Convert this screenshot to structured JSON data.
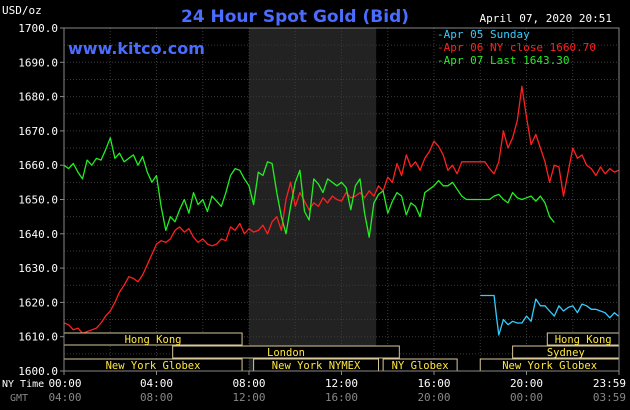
{
  "chart_data": {
    "type": "line",
    "title": "24 Hour Spot Gold (Bid)",
    "watermark": "www.kitco.com",
    "unit_label": "USD/oz",
    "timestamp": "April 07, 2020 20:51",
    "ylim": [
      1600.0,
      1700.0
    ],
    "y_ticks": [
      "1600.0",
      "1610.0",
      "1620.0",
      "1630.0",
      "1640.0",
      "1650.0",
      "1660.0",
      "1670.0",
      "1680.0",
      "1690.0",
      "1700.0"
    ],
    "x_ticks_ny": [
      "00:00",
      "04:00",
      "08:00",
      "12:00",
      "16:00",
      "20:00",
      "23:59"
    ],
    "x_ticks_gmt": [
      "04:00",
      "08:00",
      "12:00",
      "16:00",
      "20:00",
      "00:00",
      "03:59"
    ],
    "x_axis_label_ny": "NY Time",
    "x_axis_label_gmt": "GMT",
    "shaded_range": [
      8.0,
      13.5
    ],
    "legend": [
      {
        "label": "Apr 05 Sunday",
        "color": "#33ccff"
      },
      {
        "label": "Apr 06 NY close 1660.70",
        "color": "#ff2020"
      },
      {
        "label": "Apr 07 Last 1643.30",
        "color": "#22ee22"
      }
    ],
    "series": [
      {
        "color": "#33ccff",
        "x": [
          18.0,
          18.6,
          18.7,
          18.8,
          19.0,
          19.2,
          19.4,
          19.6,
          19.8,
          20.0,
          20.2,
          20.4,
          20.6,
          20.8,
          21.0,
          21.2,
          21.4,
          21.6,
          21.8,
          22.0,
          22.2,
          22.4,
          22.6,
          22.8,
          23.0,
          23.2,
          23.4,
          23.6,
          23.8,
          23.98
        ],
        "y": [
          1622.0,
          1622.0,
          1616.0,
          1610.5,
          1615.0,
          1613.5,
          1614.5,
          1614.0,
          1614.0,
          1616.0,
          1614.5,
          1621.0,
          1619.0,
          1619.0,
          1617.5,
          1616.0,
          1619.0,
          1617.5,
          1618.5,
          1619.0,
          1617.0,
          1619.5,
          1619.0,
          1618.0,
          1618.0,
          1617.5,
          1617.0,
          1615.5,
          1617.0,
          1616.0
        ]
      },
      {
        "color": "#ff2020",
        "x": [
          0.0,
          0.2,
          0.4,
          0.6,
          0.8,
          1.0,
          1.2,
          1.4,
          1.6,
          1.8,
          2.0,
          2.2,
          2.4,
          2.6,
          2.8,
          3.0,
          3.2,
          3.4,
          3.6,
          3.8,
          4.0,
          4.2,
          4.4,
          4.6,
          4.8,
          5.0,
          5.2,
          5.4,
          5.6,
          5.8,
          6.0,
          6.2,
          6.4,
          6.6,
          6.8,
          7.0,
          7.2,
          7.4,
          7.6,
          7.8,
          8.0,
          8.2,
          8.4,
          8.6,
          8.8,
          9.0,
          9.2,
          9.4,
          9.6,
          9.8,
          10.0,
          10.2,
          10.4,
          10.6,
          10.8,
          11.0,
          11.2,
          11.4,
          11.6,
          11.8,
          12.0,
          12.2,
          12.4,
          12.6,
          12.8,
          13.0,
          13.2,
          13.4,
          13.6,
          13.8,
          14.0,
          14.2,
          14.4,
          14.6,
          14.8,
          15.0,
          15.2,
          15.4,
          15.6,
          15.8,
          16.0,
          16.2,
          16.4,
          16.6,
          16.8,
          17.0,
          17.2,
          17.4,
          17.6,
          17.8,
          18.0,
          18.2,
          18.4,
          18.6,
          18.8,
          19.0,
          19.2,
          19.4,
          19.6,
          19.8,
          20.0,
          20.2,
          20.4,
          20.6,
          20.8,
          21.0,
          21.2,
          21.4,
          21.6,
          21.8,
          22.0,
          22.2,
          22.4,
          22.6,
          22.8,
          23.0,
          23.2,
          23.4,
          23.6,
          23.8,
          23.98
        ],
        "y": [
          1614.0,
          1613.5,
          1612.0,
          1612.5,
          1611.0,
          1611.5,
          1612.0,
          1612.5,
          1614.0,
          1616.0,
          1617.5,
          1620.0,
          1623.0,
          1625.0,
          1627.5,
          1627.0,
          1626.0,
          1628.0,
          1631.0,
          1634.0,
          1637.0,
          1638.0,
          1637.5,
          1638.5,
          1641.0,
          1642.0,
          1640.5,
          1641.5,
          1639.0,
          1637.5,
          1638.5,
          1637.0,
          1636.5,
          1637.0,
          1638.5,
          1638.0,
          1642.0,
          1641.0,
          1643.0,
          1640.0,
          1641.5,
          1640.5,
          1641.0,
          1642.5,
          1640.0,
          1643.5,
          1645.0,
          1641.0,
          1650.0,
          1655.0,
          1648.0,
          1652.0,
          1649.5,
          1647.0,
          1649.0,
          1648.0,
          1650.5,
          1649.0,
          1651.0,
          1650.0,
          1649.5,
          1652.0,
          1650.5,
          1651.0,
          1652.0,
          1650.5,
          1652.5,
          1651.0,
          1654.0,
          1652.5,
          1656.5,
          1655.0,
          1660.5,
          1657.0,
          1663.0,
          1659.5,
          1661.0,
          1658.5,
          1662.0,
          1664.0,
          1667.0,
          1665.5,
          1663.0,
          1658.5,
          1660.0,
          1657.5,
          1661.0,
          1661.0,
          1661.0,
          1661.0,
          1661.0,
          1661.0,
          1659.0,
          1657.5,
          1661.0,
          1670.0,
          1665.0,
          1668.0,
          1673.0,
          1683.0,
          1674.0,
          1666.0,
          1669.0,
          1665.0,
          1661.0,
          1655.0,
          1660.0,
          1659.5,
          1651.0,
          1658.0,
          1665.0,
          1662.0,
          1663.0,
          1660.0,
          1659.0,
          1657.0,
          1659.5,
          1657.5,
          1659.0,
          1658.0,
          1658.5
        ]
      },
      {
        "color": "#22ee22",
        "x": [
          0.0,
          0.2,
          0.4,
          0.6,
          0.8,
          1.0,
          1.2,
          1.4,
          1.6,
          1.8,
          2.0,
          2.2,
          2.4,
          2.6,
          2.8,
          3.0,
          3.2,
          3.4,
          3.6,
          3.8,
          4.0,
          4.2,
          4.4,
          4.6,
          4.8,
          5.0,
          5.2,
          5.4,
          5.6,
          5.8,
          6.0,
          6.2,
          6.4,
          6.6,
          6.8,
          7.0,
          7.2,
          7.4,
          7.6,
          7.8,
          8.0,
          8.2,
          8.4,
          8.6,
          8.8,
          9.0,
          9.2,
          9.4,
          9.6,
          9.8,
          10.0,
          10.2,
          10.4,
          10.6,
          10.8,
          11.0,
          11.2,
          11.4,
          11.6,
          11.8,
          12.0,
          12.2,
          12.4,
          12.6,
          12.8,
          13.0,
          13.2,
          13.4,
          13.6,
          13.8,
          14.0,
          14.2,
          14.4,
          14.6,
          14.8,
          15.0,
          15.2,
          15.4,
          15.6,
          15.8,
          16.0,
          16.2,
          16.4,
          16.6,
          16.8,
          17.0,
          17.2,
          17.4,
          17.6,
          17.8,
          18.0,
          18.2,
          18.4,
          18.6,
          18.8,
          19.0,
          19.2,
          19.4,
          19.6,
          19.8,
          20.0,
          20.2,
          20.4,
          20.6,
          20.8,
          21.0,
          21.2
        ],
        "y": [
          1660.0,
          1659.0,
          1660.5,
          1658.0,
          1656.0,
          1661.5,
          1660.0,
          1662.0,
          1661.5,
          1664.5,
          1668.0,
          1662.0,
          1663.5,
          1661.0,
          1662.0,
          1663.0,
          1660.0,
          1662.5,
          1658.0,
          1655.0,
          1657.0,
          1648.0,
          1641.0,
          1645.0,
          1643.5,
          1647.0,
          1650.0,
          1646.0,
          1652.0,
          1648.5,
          1650.0,
          1646.5,
          1651.0,
          1649.5,
          1648.0,
          1652.0,
          1657.0,
          1659.0,
          1658.5,
          1656.0,
          1654.0,
          1648.5,
          1658.0,
          1657.0,
          1661.0,
          1660.5,
          1652.0,
          1645.0,
          1640.0,
          1648.0,
          1655.0,
          1658.5,
          1646.5,
          1644.0,
          1656.0,
          1654.5,
          1652.0,
          1656.0,
          1655.0,
          1654.0,
          1655.0,
          1653.5,
          1647.0,
          1654.0,
          1656.0,
          1646.0,
          1639.0,
          1649.0,
          1651.5,
          1652.5,
          1646.0,
          1649.5,
          1652.0,
          1651.0,
          1645.5,
          1649.0,
          1648.0,
          1645.0,
          1652.0,
          1653.0,
          1654.0,
          1655.5,
          1654.0,
          1654.0,
          1655.0,
          1653.0,
          1651.0,
          1650.0,
          1650.0,
          1650.0,
          1650.0,
          1650.0,
          1650.0,
          1651.0,
          1651.5,
          1650.0,
          1649.0,
          1652.0,
          1650.5,
          1650.0,
          1650.5,
          1651.0,
          1649.5,
          1651.0,
          1649.0,
          1645.0,
          1643.3
        ]
      }
    ],
    "market_bars": [
      {
        "label": "Hong Kong",
        "start": 0.0,
        "end": 7.7,
        "row": 0
      },
      {
        "label": "London",
        "start": 4.7,
        "end": 14.5,
        "row": 1
      },
      {
        "label": "New York Globex",
        "start": 0.0,
        "end": 7.7,
        "row": 2
      },
      {
        "label": "New York NYMEX",
        "start": 8.2,
        "end": 13.6,
        "row": 2
      },
      {
        "label": "NY Globex",
        "start": 13.8,
        "end": 17.0,
        "row": 2
      },
      {
        "label": "Hong Kong",
        "start": 20.9,
        "end": 24.0,
        "row": 0
      },
      {
        "label": "Sydney",
        "start": 19.4,
        "end": 24.0,
        "row": 1
      },
      {
        "label": "New York Globex",
        "start": 18.0,
        "end": 24.0,
        "row": 2
      }
    ]
  }
}
